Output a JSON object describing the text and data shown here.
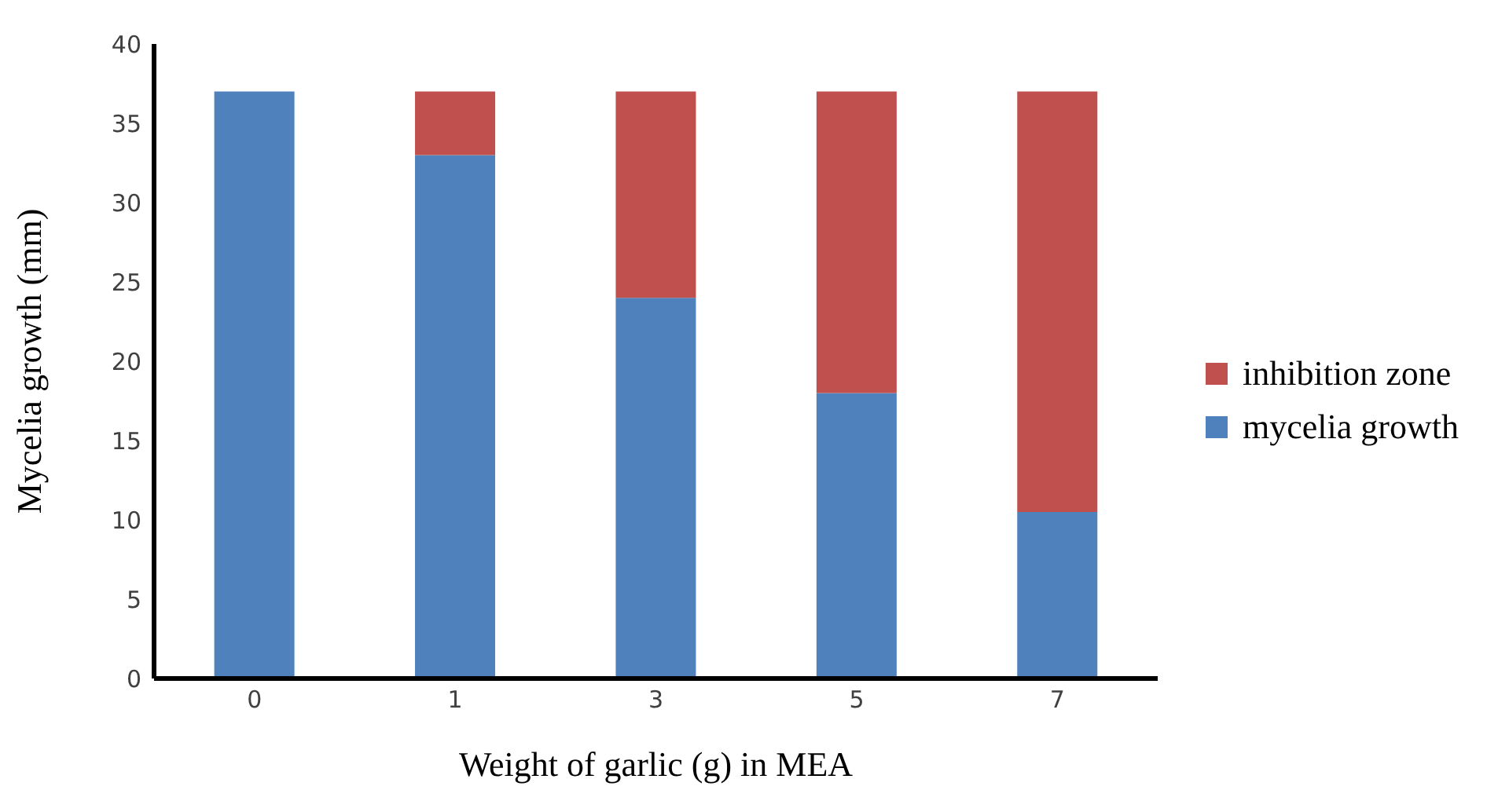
{
  "chart_data": {
    "type": "bar",
    "stacked": true,
    "xlabel": "Weight  of garlic  (g) in MEA",
    "ylabel": "Mycelia  growth  (mm)",
    "categories": [
      "0",
      "1",
      "3",
      "5",
      "7"
    ],
    "series": [
      {
        "name": "mycelia growth",
        "color": "#4f81bd",
        "values": [
          37,
          33,
          24,
          18,
          10.5
        ]
      },
      {
        "name": "inhibition zone",
        "color": "#c0504d",
        "values": [
          0,
          4,
          13,
          19,
          26.5
        ]
      }
    ],
    "ylim": [
      0,
      40
    ],
    "yticks": [
      0,
      5,
      10,
      15,
      20,
      25,
      30,
      35,
      40
    ],
    "grid": false,
    "legend": "right"
  }
}
